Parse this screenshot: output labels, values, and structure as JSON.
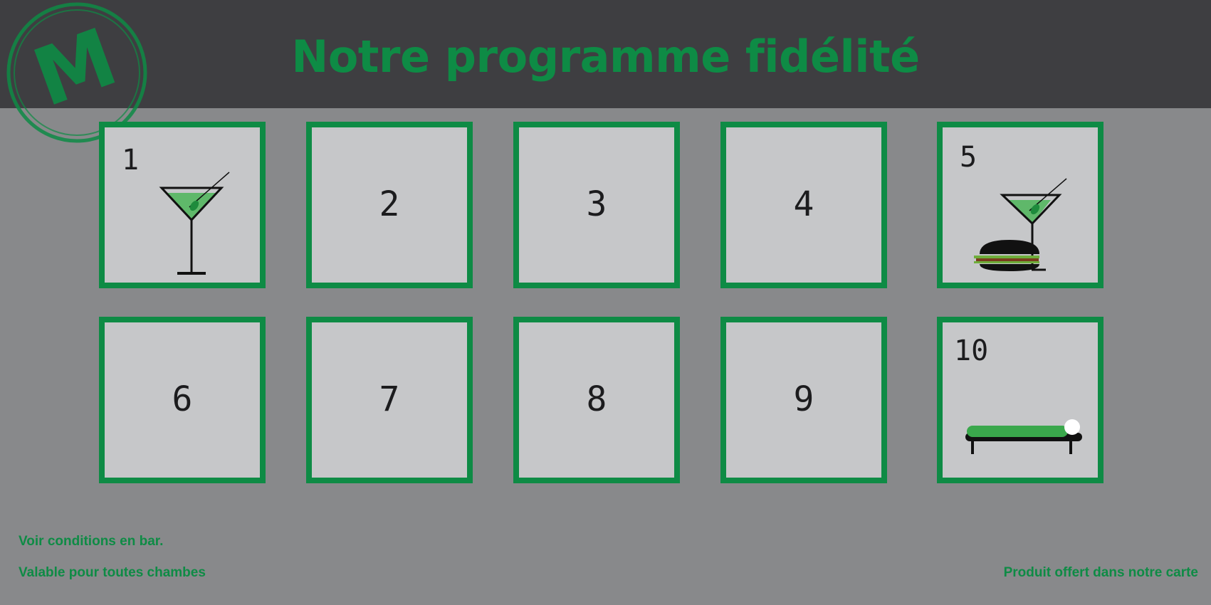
{
  "header": {
    "title": "Notre programme fidélité",
    "logo_letter": "M"
  },
  "cards": [
    {
      "number": "1",
      "icon": "cocktail-glass-icon"
    },
    {
      "number": "2"
    },
    {
      "number": "3"
    },
    {
      "number": "4"
    },
    {
      "number": "5",
      "icon": "cocktail-and-burger-icon"
    },
    {
      "number": "6"
    },
    {
      "number": "7"
    },
    {
      "number": "8"
    },
    {
      "number": "9"
    },
    {
      "number": "10",
      "icon": "sunbed-icon"
    }
  ],
  "footer": {
    "conditions": "Voir conditions en bar.",
    "validity": "Valable pour toutes chambes",
    "offer": "Produit offert dans notre carte"
  },
  "colors": {
    "brand_green": "#0e8b45",
    "header_bg": "#3e3e41",
    "page_bg": "#88898b",
    "card_bg": "#c6c7c9"
  }
}
